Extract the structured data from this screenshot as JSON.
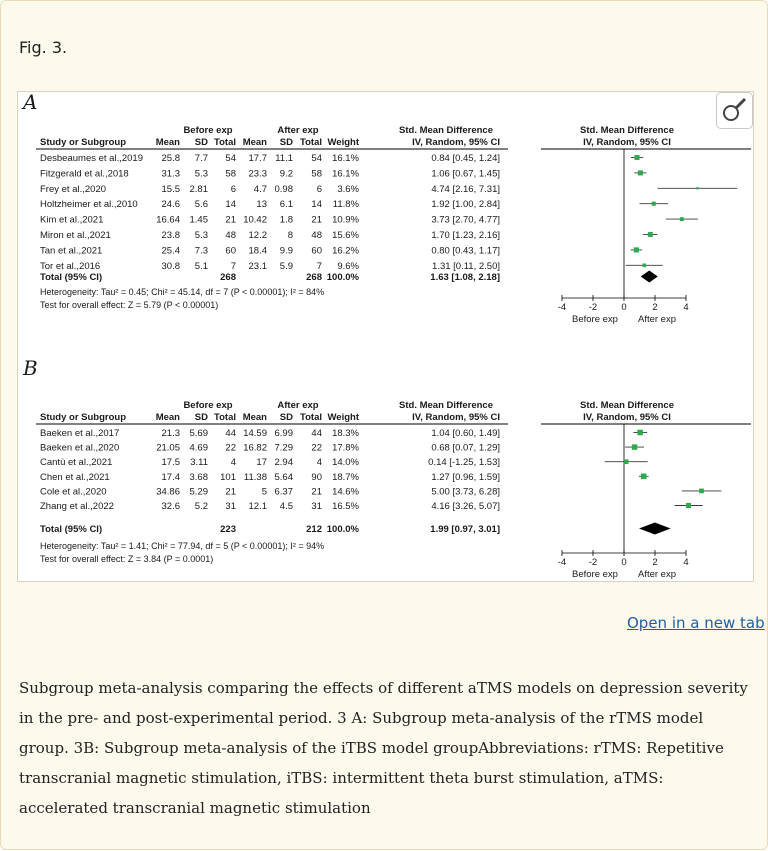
{
  "figure_label": "Fig. 3.",
  "open_link": "Open in a new tab",
  "caption": "Subgroup meta-analysis comparing the effects of different aTMS models on depression severity in the pre- and post-experimental period. 3  A: Subgroup meta-analysis of the rTMS model group. 3B: Subgroup meta-analysis of the iTBS model groupAbbreviations: rTMS: Repetitive transcranial magnetic stimulation, iTBS: intermittent theta burst stimulation, aTMS: accelerated transcranial magnetic stimulation",
  "icons": {
    "zoom": "magnifier-icon"
  },
  "colors": {
    "marker": "#2fa84f",
    "line": "#3a3a3a",
    "diamond": "#000000"
  },
  "chart_data": [
    {
      "type": "forest",
      "panel_label": "A",
      "header_group_1": "Before exp",
      "header_group_2": "After exp",
      "header_smd": "Std. Mean Difference",
      "header_smd_sub": "IV, Random, 95% CI",
      "columns": [
        "Study or Subgroup",
        "Mean",
        "SD",
        "Total",
        "Mean",
        "SD",
        "Total",
        "Weight",
        "IV, Random, 95% CI"
      ],
      "studies": [
        {
          "name": "Desbeaumes et al.,2019",
          "m1": "25.8",
          "sd1": "7.7",
          "n1": "54",
          "m2": "17.7",
          "sd2": "11.1",
          "n2": "54",
          "weight": "16.1%",
          "ci": "0.84 [0.45, 1.24]",
          "est": 0.84,
          "lo": 0.45,
          "hi": 1.24
        },
        {
          "name": "Fitzgerald et al.,2018",
          "m1": "31.3",
          "sd1": "5.3",
          "n1": "58",
          "m2": "23.3",
          "sd2": "9.2",
          "n2": "58",
          "weight": "16.1%",
          "ci": "1.06 [0.67, 1.45]",
          "est": 1.06,
          "lo": 0.67,
          "hi": 1.45
        },
        {
          "name": "Frey et al.,2020",
          "m1": "15.5",
          "sd1": "2.81",
          "n1": "6",
          "m2": "4.7",
          "sd2": "0.98",
          "n2": "6",
          "weight": "3.6%",
          "ci": "4.74 [2.16, 7.31]",
          "est": 4.74,
          "lo": 2.16,
          "hi": 7.31
        },
        {
          "name": "Holtzheimer et al.,2010",
          "m1": "24.6",
          "sd1": "5.6",
          "n1": "14",
          "m2": "13",
          "sd2": "6.1",
          "n2": "14",
          "weight": "11.8%",
          "ci": "1.92 [1.00, 2.84]",
          "est": 1.92,
          "lo": 1.0,
          "hi": 2.84
        },
        {
          "name": "Kim et al.,2021",
          "m1": "16.64",
          "sd1": "1.45",
          "n1": "21",
          "m2": "10.42",
          "sd2": "1.8",
          "n2": "21",
          "weight": "10.9%",
          "ci": "3.73 [2.70, 4.77]",
          "est": 3.73,
          "lo": 2.7,
          "hi": 4.77
        },
        {
          "name": "Miron et al.,2021",
          "m1": "23.8",
          "sd1": "5.3",
          "n1": "48",
          "m2": "12.2",
          "sd2": "8",
          "n2": "48",
          "weight": "15.6%",
          "ci": "1.70 [1.23, 2.16]",
          "est": 1.7,
          "lo": 1.23,
          "hi": 2.16
        },
        {
          "name": "Tan et al.,2021",
          "m1": "25.4",
          "sd1": "7.3",
          "n1": "60",
          "m2": "18.4",
          "sd2": "9.9",
          "n2": "60",
          "weight": "16.2%",
          "ci": "0.80 [0.43, 1.17]",
          "est": 0.8,
          "lo": 0.43,
          "hi": 1.17
        },
        {
          "name": "Tor et al.,2016",
          "m1": "30.8",
          "sd1": "5.1",
          "n1": "7",
          "m2": "23.1",
          "sd2": "5.9",
          "n2": "7",
          "weight": "9.6%",
          "ci": "1.31 [0.11, 2.50]",
          "est": 1.31,
          "lo": 0.11,
          "hi": 2.5
        }
      ],
      "total": {
        "label": "Total (95% CI)",
        "n1": "268",
        "n2": "268",
        "weight": "100.0%",
        "ci": "1.63 [1.08, 2.18]",
        "est": 1.63,
        "lo": 1.08,
        "hi": 2.18
      },
      "heterogeneity": "Heterogeneity: Tau² = 0.45; Chi² = 45.14, df = 7 (P < 0.00001); I² = 84%",
      "overall_effect": "Test for overall effect: Z = 5.79 (P < 0.00001)",
      "xlim": [
        -4,
        4
      ],
      "xticks": [
        -4,
        -2,
        0,
        2,
        4
      ],
      "xtick_labels": [
        "-4",
        "-2",
        "0",
        "2",
        "4"
      ],
      "favours_left": "Before exp",
      "favours_right": "After exp"
    },
    {
      "type": "forest",
      "panel_label": "B",
      "header_group_1": "Before exp",
      "header_group_2": "After exp",
      "header_smd": "Std. Mean Difference",
      "header_smd_sub": "IV, Random, 95% CI",
      "columns": [
        "Study or Subgroup",
        "Mean",
        "SD",
        "Total",
        "Mean",
        "SD",
        "Total",
        "Weight",
        "IV, Random, 95% CI"
      ],
      "studies": [
        {
          "name": "Baeken et al.,2017",
          "m1": "21.3",
          "sd1": "5.69",
          "n1": "44",
          "m2": "14.59",
          "sd2": "6.99",
          "n2": "44",
          "weight": "18.3%",
          "ci": "1.04 [0.60, 1.49]",
          "est": 1.04,
          "lo": 0.6,
          "hi": 1.49
        },
        {
          "name": "Baeken et al.,2020",
          "m1": "21.05",
          "sd1": "4.69",
          "n1": "22",
          "m2": "16.82",
          "sd2": "7.29",
          "n2": "22",
          "weight": "17.8%",
          "ci": "0.68 [0.07, 1.29]",
          "est": 0.68,
          "lo": 0.07,
          "hi": 1.29
        },
        {
          "name": "Cantù  et al.,2021",
          "m1": "17.5",
          "sd1": "3.11",
          "n1": "4",
          "m2": "17",
          "sd2": "2.94",
          "n2": "4",
          "weight": "14.0%",
          "ci": "0.14 [-1.25, 1.53]",
          "est": 0.14,
          "lo": -1.25,
          "hi": 1.53
        },
        {
          "name": "Chen et al.,2021",
          "m1": "17.4",
          "sd1": "3.68",
          "n1": "101",
          "m2": "11.38",
          "sd2": "5.64",
          "n2": "90",
          "weight": "18.7%",
          "ci": "1.27 [0.96, 1.59]",
          "est": 1.27,
          "lo": 0.96,
          "hi": 1.59
        },
        {
          "name": "Cole et al.,2020",
          "m1": "34.86",
          "sd1": "5.29",
          "n1": "21",
          "m2": "5",
          "sd2": "6.37",
          "n2": "21",
          "weight": "14.6%",
          "ci": "5.00 [3.73, 6.28]",
          "est": 5.0,
          "lo": 3.73,
          "hi": 6.28
        },
        {
          "name": "Zhang et al.,2022",
          "m1": "32.6",
          "sd1": "5.2",
          "n1": "31",
          "m2": "12.1",
          "sd2": "4.5",
          "n2": "31",
          "weight": "16.5%",
          "ci": "4.16 [3.26, 5.07]",
          "est": 4.16,
          "lo": 3.26,
          "hi": 5.07
        }
      ],
      "total": {
        "label": "Total (95% CI)",
        "n1": "223",
        "n2": "212",
        "weight": "100.0%",
        "ci": "1.99 [0.97, 3.01]",
        "est": 1.99,
        "lo": 0.97,
        "hi": 3.01
      },
      "heterogeneity": "Heterogeneity: Tau² = 1.41; Chi² = 77.94, df = 5 (P < 0.00001); I² = 94%",
      "overall_effect": "Test for overall effect: Z = 3.84 (P = 0.0001)",
      "xlim": [
        -4,
        4
      ],
      "xticks": [
        -4,
        -2,
        0,
        2,
        4
      ],
      "xtick_labels": [
        "-4",
        "-2",
        "0",
        "2",
        "4"
      ],
      "favours_left": "Before exp",
      "favours_right": "After exp"
    }
  ]
}
